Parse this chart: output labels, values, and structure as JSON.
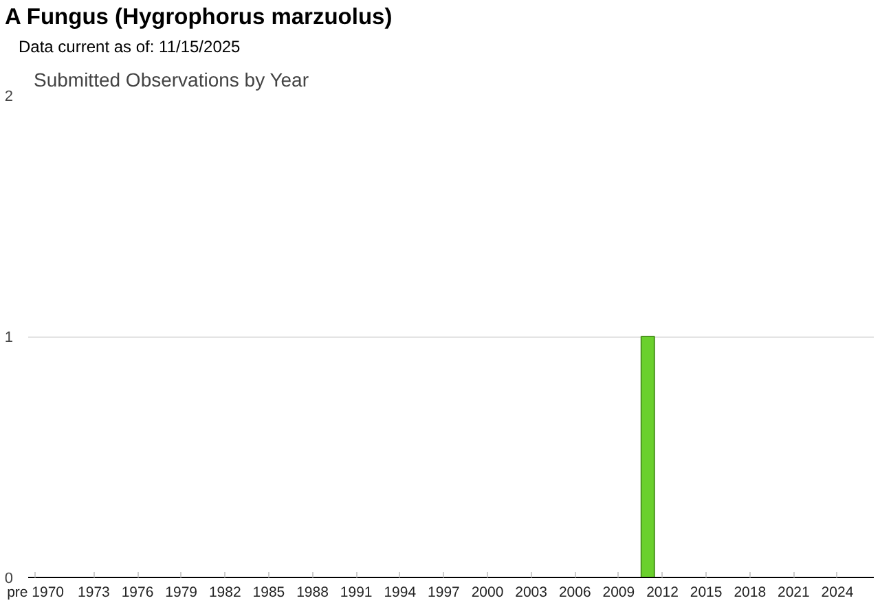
{
  "chart_data": {
    "type": "bar",
    "title": "A Fungus   (Hygrophorus marzuolus)",
    "subtitle": "Data current as of: 11/15/2025",
    "annotations": [
      "Submitted Observations by Year"
    ],
    "categories": [
      "pre 1970",
      null,
      null,
      null,
      "1973",
      null,
      null,
      "1976",
      null,
      null,
      "1979",
      null,
      null,
      "1982",
      null,
      null,
      "1985",
      null,
      null,
      "1988",
      null,
      null,
      "1991",
      null,
      null,
      "1994",
      null,
      null,
      "1997",
      null,
      null,
      "2000",
      null,
      null,
      "2003",
      null,
      null,
      "2006",
      null,
      null,
      "2009",
      null,
      null,
      "2012",
      null,
      null,
      "2015",
      null,
      null,
      "2018",
      null,
      null,
      "2021",
      null,
      null,
      "2024",
      null,
      null
    ],
    "values": [
      null,
      null,
      null,
      null,
      null,
      null,
      null,
      null,
      null,
      null,
      null,
      null,
      null,
      null,
      null,
      null,
      null,
      null,
      null,
      null,
      null,
      null,
      null,
      null,
      null,
      null,
      null,
      null,
      null,
      null,
      null,
      null,
      null,
      null,
      null,
      null,
      null,
      null,
      null,
      null,
      null,
      null,
      1,
      null,
      null,
      null,
      null,
      null,
      null,
      null,
      null,
      null,
      null,
      null,
      null,
      null,
      null,
      null
    ],
    "color": "#6ad02c",
    "ylim": [
      0,
      2
    ],
    "yticks": [
      0,
      1,
      2
    ],
    "grid": "y"
  }
}
